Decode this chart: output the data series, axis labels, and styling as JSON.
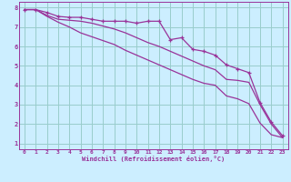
{
  "xlabel": "Windchill (Refroidissement éolien,°C)",
  "bg_color": "#cceeff",
  "grid_color": "#99cccc",
  "line_color": "#993399",
  "xlim": [
    -0.5,
    23.5
  ],
  "ylim": [
    0.7,
    8.3
  ],
  "xticks": [
    0,
    1,
    2,
    3,
    4,
    5,
    6,
    7,
    8,
    9,
    10,
    11,
    12,
    13,
    14,
    15,
    16,
    17,
    18,
    19,
    20,
    21,
    22,
    23
  ],
  "yticks": [
    1,
    2,
    3,
    4,
    5,
    6,
    7,
    8
  ],
  "line1_x": [
    0,
    1,
    2,
    3,
    4,
    5,
    6,
    7,
    8,
    9,
    10,
    11,
    12,
    13,
    14,
    15,
    16,
    17,
    18,
    19,
    20,
    21,
    22,
    23
  ],
  "line1_y": [
    7.9,
    7.9,
    7.75,
    7.55,
    7.5,
    7.5,
    7.4,
    7.3,
    7.3,
    7.3,
    7.2,
    7.3,
    7.3,
    6.35,
    6.45,
    5.85,
    5.75,
    5.55,
    5.05,
    4.85,
    4.65,
    3.1,
    2.1,
    1.4
  ],
  "line2_x": [
    0,
    1,
    2,
    3,
    4,
    5,
    6,
    7,
    8,
    9,
    10,
    11,
    12,
    13,
    14,
    15,
    16,
    17,
    18,
    19,
    20,
    21,
    22,
    23
  ],
  "line2_y": [
    7.9,
    7.9,
    7.6,
    7.4,
    7.35,
    7.3,
    7.2,
    7.05,
    6.9,
    6.7,
    6.45,
    6.2,
    6.0,
    5.75,
    5.5,
    5.25,
    5.0,
    4.8,
    4.3,
    4.25,
    4.15,
    3.0,
    2.0,
    1.3
  ],
  "line3_x": [
    0,
    1,
    2,
    3,
    4,
    5,
    6,
    7,
    8,
    9,
    10,
    11,
    12,
    13,
    14,
    15,
    16,
    17,
    18,
    19,
    20,
    21,
    22,
    23
  ],
  "line3_y": [
    7.9,
    7.9,
    7.55,
    7.25,
    7.0,
    6.7,
    6.5,
    6.3,
    6.1,
    5.8,
    5.55,
    5.3,
    5.05,
    4.8,
    4.55,
    4.3,
    4.1,
    4.0,
    3.45,
    3.3,
    3.05,
    2.05,
    1.45,
    1.3
  ]
}
